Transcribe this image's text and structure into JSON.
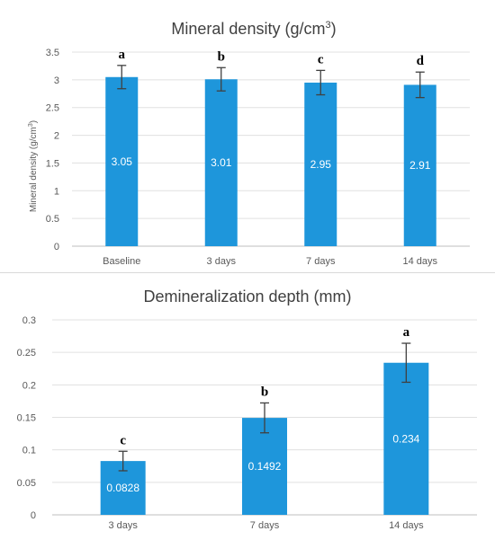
{
  "chart_data": [
    {
      "type": "bar",
      "title": "Mineral density (g/cm",
      "title_sup": "3",
      "title_end": ")",
      "ylabel": "Mineral density (g/cm",
      "ylabel_sup": "3",
      "ylabel_end": ")",
      "xlabel": "",
      "categories": [
        "Baseline",
        "3 days",
        "7 days",
        "14 days"
      ],
      "values": [
        3.05,
        3.01,
        2.95,
        2.91
      ],
      "value_labels": [
        "3.05",
        "3.01",
        "2.95",
        "2.91"
      ],
      "errors": [
        0.21,
        0.21,
        0.22,
        0.23
      ],
      "significance_letters": [
        "a",
        "b",
        "c",
        "d"
      ],
      "ylim": [
        0,
        3.5
      ],
      "yticks": [
        0,
        0.5,
        1,
        1.5,
        2,
        2.5,
        3,
        3.5
      ],
      "ytick_labels": [
        "0",
        "0.5",
        "1",
        "1.5",
        "2",
        "2.5",
        "3",
        "3.5"
      ],
      "grid": true,
      "bar_color": "#1e96db"
    },
    {
      "type": "bar",
      "title": "Demineralization depth (mm)",
      "ylabel": "",
      "xlabel": "",
      "categories": [
        "3 days",
        "7 days",
        "14 days"
      ],
      "values": [
        0.0828,
        0.1492,
        0.234
      ],
      "value_labels": [
        "0.0828",
        "0.1492",
        "0.234"
      ],
      "errors": [
        0.015,
        0.023,
        0.03
      ],
      "significance_letters": [
        "c",
        "b",
        "a"
      ],
      "ylim": [
        0,
        0.3
      ],
      "yticks": [
        0,
        0.05,
        0.1,
        0.15,
        0.2,
        0.25,
        0.3
      ],
      "ytick_labels": [
        "0",
        "0.05",
        "0.1",
        "0.15",
        "0.2",
        "0.25",
        "0.3"
      ],
      "grid": true,
      "bar_color": "#1e96db"
    }
  ]
}
